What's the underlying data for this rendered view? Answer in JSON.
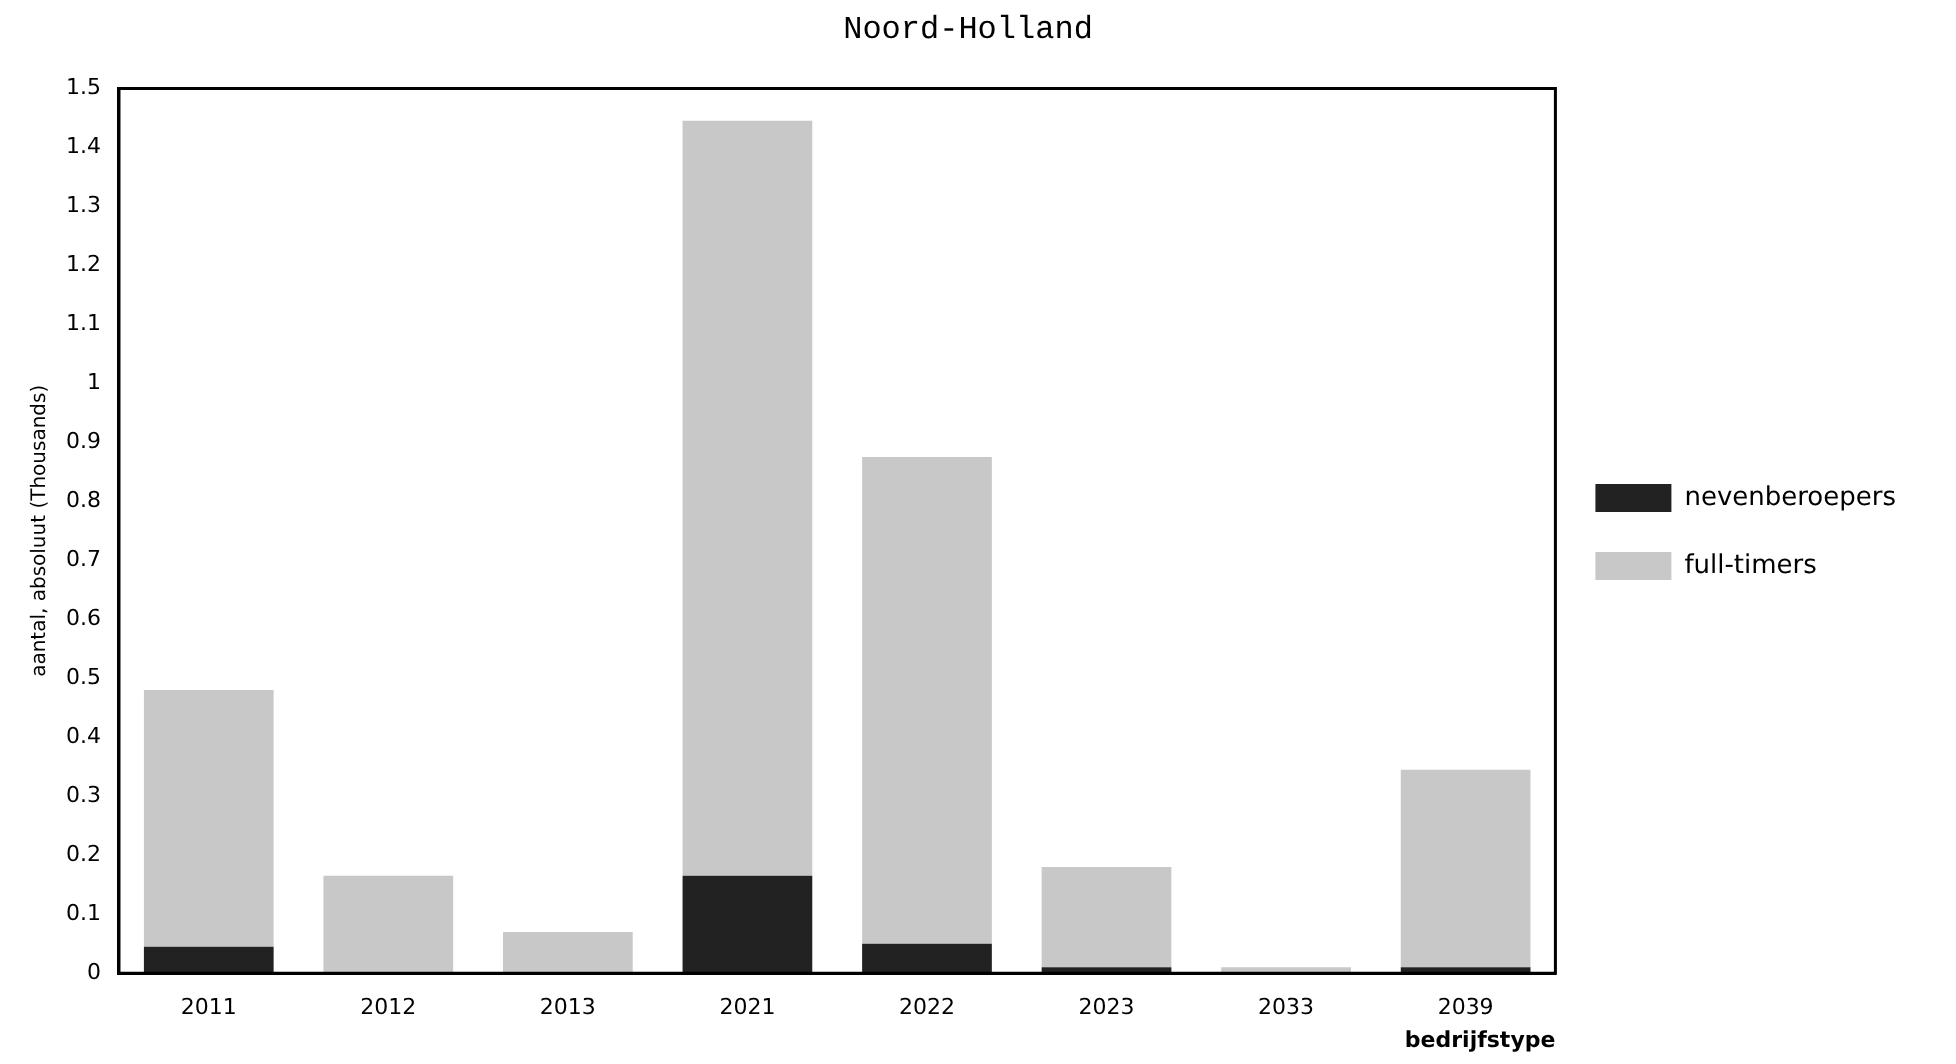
{
  "chart_data": {
    "type": "bar",
    "title": "Noord-Holland",
    "xlabel": "bedrijfstype",
    "ylabel": "aantal, absoluut (Thousands)",
    "categories": [
      "2011",
      "2012",
      "2013",
      "2021",
      "2022",
      "2023",
      "2033",
      "2039"
    ],
    "stacked": true,
    "grid": false,
    "legend": "right",
    "ylim": [
      0,
      1.5
    ],
    "yticks": [
      0,
      0.1,
      0.2,
      0.3,
      0.4,
      0.5,
      0.6,
      0.7,
      0.8,
      0.9,
      1,
      1.1,
      1.2,
      1.3,
      1.4,
      1.5
    ],
    "series": [
      {
        "name": "nevenberoepers",
        "color": "#222222",
        "values": [
          0.045,
          0,
          0,
          0.165,
          0.05,
          0.01,
          null,
          0.01
        ]
      },
      {
        "name": "full-timers",
        "color": "#c8c8c8",
        "values": [
          0.435,
          0.165,
          0.07,
          1.28,
          0.825,
          0.17,
          0.01,
          0.335
        ]
      }
    ]
  }
}
